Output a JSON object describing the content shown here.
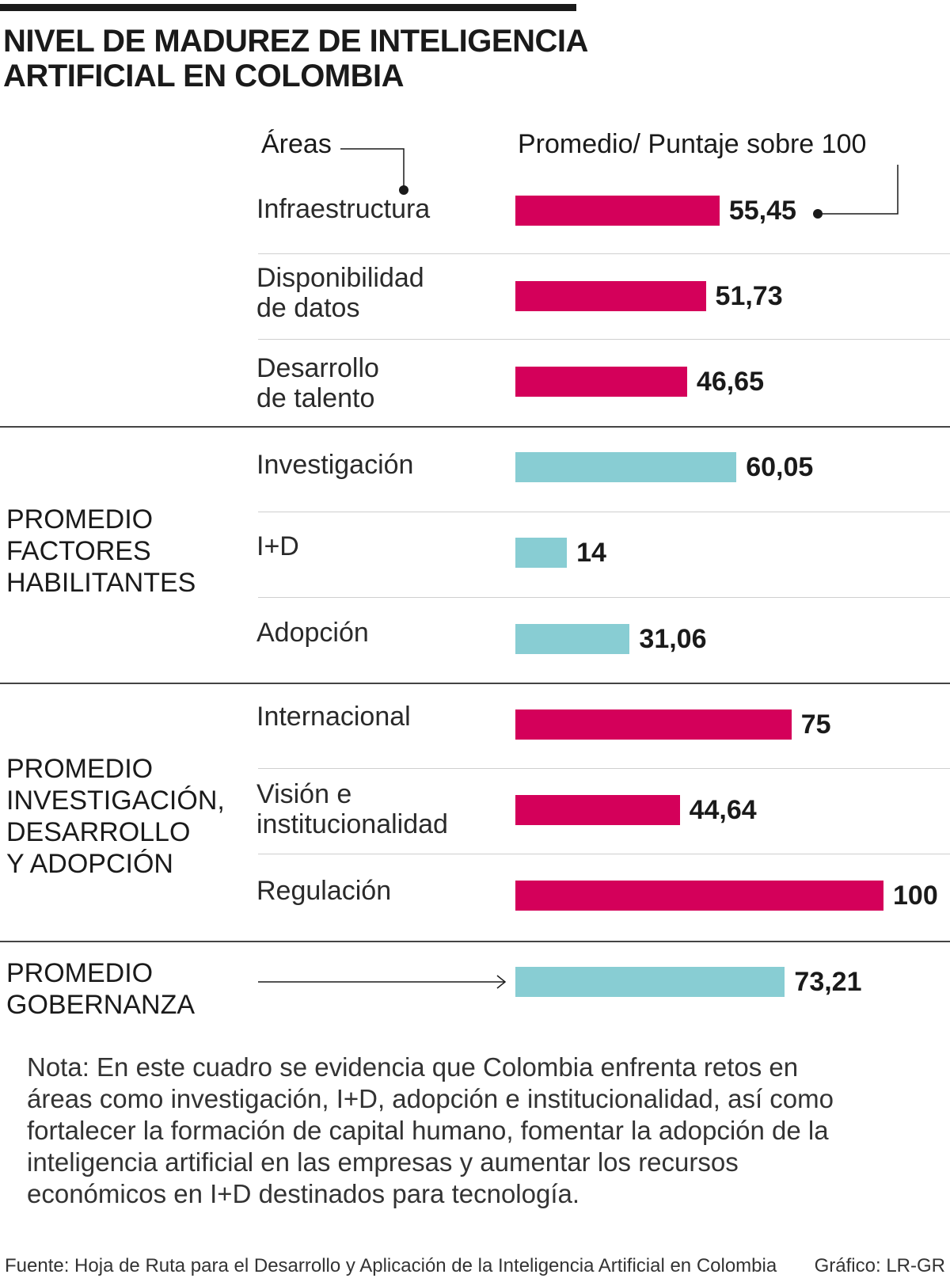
{
  "title": "NIVEL DE MADUREZ DE INTELIGENCIA\nARTIFICIAL EN COLOMBIA",
  "header": {
    "areas": "Áreas",
    "score": "Promedio/ Puntaje sobre 100"
  },
  "colors": {
    "magenta": "#d4005a",
    "teal": "#88cdd3"
  },
  "chart_data": {
    "type": "bar",
    "orientation": "horizontal",
    "title": "NIVEL DE MADUREZ DE INTELIGENCIA ARTIFICIAL EN COLOMBIA",
    "xlim": [
      0,
      100
    ],
    "categories": [
      "Infraestructura",
      "Disponibilidad de datos",
      "Desarrollo de talento",
      "Investigación",
      "I+D",
      "Adopción",
      "Internacional",
      "Visión e institucionalidad",
      "Regulación",
      "PROMEDIO GOBERNANZA"
    ],
    "labels": [
      "Infraestructura",
      "Disponibilidad\nde datos",
      "Desarrollo\nde talento",
      "Investigación",
      "I+D",
      "Adopción",
      "Internacional",
      "Visión e\ninstitucionalidad",
      "Regulación",
      ""
    ],
    "values": [
      55.45,
      51.73,
      46.65,
      60.05,
      14,
      31.06,
      75,
      44.64,
      100,
      73.21
    ],
    "value_labels": [
      "55,45",
      "51,73",
      "46,65",
      "60,05",
      "14",
      "31,06",
      "75",
      "44,64",
      "100",
      "73,21"
    ],
    "bar_colors": [
      "magenta",
      "magenta",
      "magenta",
      "teal",
      "teal",
      "teal",
      "magenta",
      "magenta",
      "magenta",
      "teal"
    ],
    "group_labels": [
      "PROMEDIO\nFACTORES\nHABILITANTES",
      "PROMEDIO\nINVESTIGACIÓN,\nDESARROLLO\nY ADOPCIÓN",
      "PROMEDIO\nGOBERNANZA"
    ]
  },
  "note": "Nota: En este  cuadro se evidencia que Colombia enfrenta retos en\náreas como investigación, I+D, adopción e institucionalidad, así como\nfortalecer la formación de capital humano, fomentar la adopción de la\ninteligencia artificial en las empresas y aumentar los recursos\neconómicos en I+D destinados para tecnología.",
  "source": "Fuente: Hoja de  Ruta para el Desarrollo y Aplicación de la Inteligencia  Artificial en Colombia",
  "credit": "Gráfico: LR-GR"
}
